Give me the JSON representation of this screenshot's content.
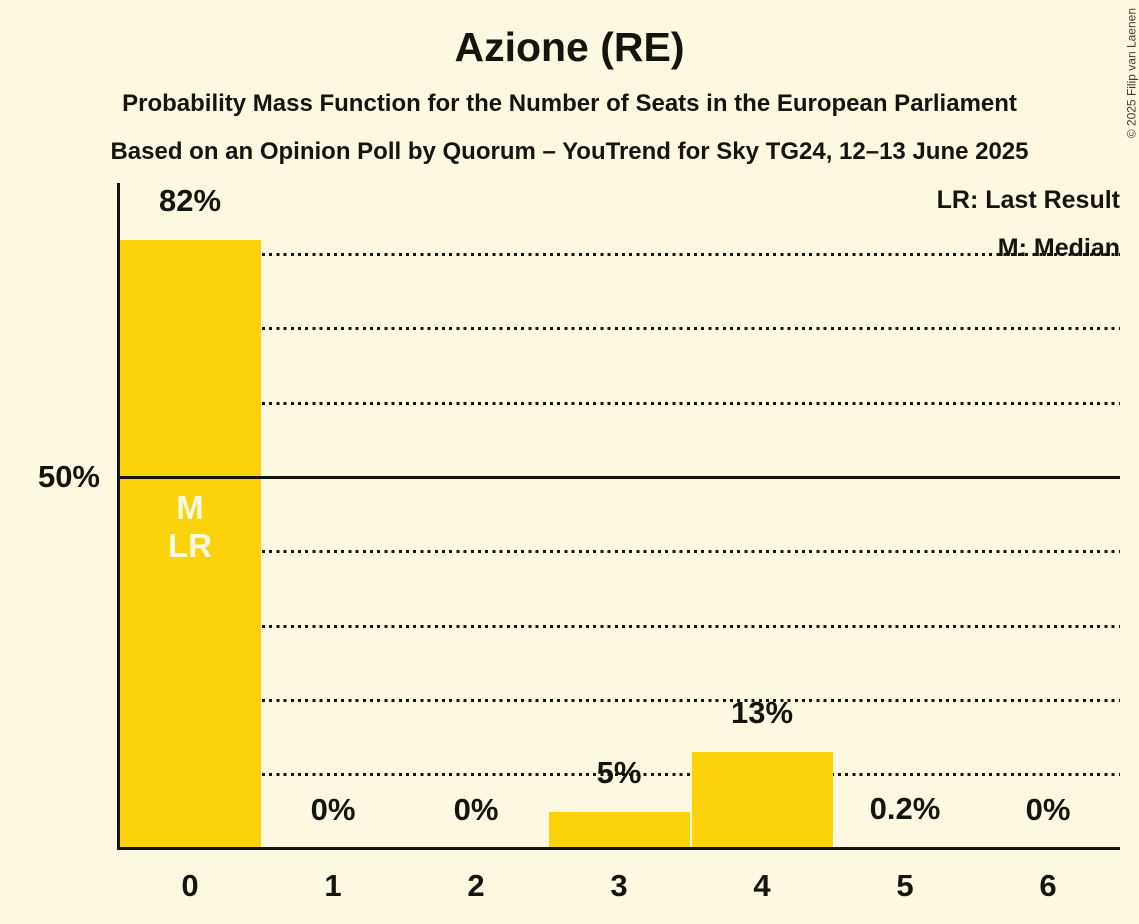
{
  "header": {
    "title": "Azione (RE)",
    "subtitle1": "Probability Mass Function for the Number of Seats in the European Parliament",
    "subtitle2": "Based on an Opinion Poll by Quorum – YouTrend for Sky TG24, 12–13 June 2025"
  },
  "legend": {
    "last_result": "LR: Last Result",
    "median": "M: Median"
  },
  "copyright": "© 2025 Filip van Laenen",
  "chart_data": {
    "type": "bar",
    "title": "Azione (RE)",
    "categories": [
      "0",
      "1",
      "2",
      "3",
      "4",
      "5",
      "6"
    ],
    "values": [
      82,
      0,
      0,
      5,
      13,
      0.2,
      0
    ],
    "value_labels": [
      "82%",
      "0%",
      "0%",
      "5%",
      "13%",
      "0.2%",
      "0%"
    ],
    "median_bar_index": 0,
    "last_result_bar_index": 0,
    "bar_annotation_lines": [
      "M",
      "LR"
    ],
    "y_tick": {
      "pct": 50,
      "label": "50%"
    },
    "ylim": [
      0,
      90
    ],
    "gridlines_pct": [
      10,
      20,
      30,
      40,
      50,
      60,
      70,
      80
    ],
    "solid_gridline_pct": 50,
    "grid": "dotted-horizontal",
    "legend_position": "top-right",
    "colors": {
      "bar": "#FCD20A",
      "background": "#FDF8E1",
      "text": "#15150F",
      "annotation_text": "#FDF8E1"
    }
  }
}
